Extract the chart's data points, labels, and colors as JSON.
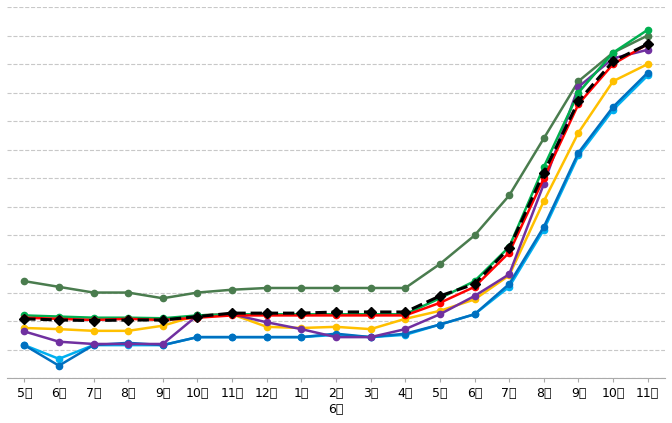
{
  "x_labels": [
    "5月",
    "6月",
    "7月",
    "8月",
    "9月",
    "10月",
    "11月",
    "12月",
    "1月",
    "2月",
    "3月",
    "4月",
    "5月",
    "6月",
    "7月",
    "8月",
    "9月",
    "10月",
    "11月"
  ],
  "xlabel": "6年",
  "series": [
    {
      "name": "dark_green",
      "color": "#4a7c4e",
      "linestyle": "-",
      "marker": "o",
      "linewidth": 1.8,
      "markersize": 4.5,
      "zorder": 3,
      "values": [
        3200,
        3100,
        3000,
        3000,
        2900,
        3000,
        3050,
        3080,
        3080,
        3080,
        3080,
        3080,
        3500,
        4000,
        4700,
        5700,
        6700,
        7200,
        7500
      ]
    },
    {
      "name": "bright_green",
      "color": "#00b050",
      "linestyle": "-",
      "marker": "o",
      "linewidth": 1.8,
      "markersize": 4.5,
      "zorder": 4,
      "values": [
        2600,
        2580,
        2560,
        2560,
        2550,
        2600,
        2620,
        2620,
        2620,
        2620,
        2620,
        2620,
        2900,
        3200,
        3800,
        5200,
        6500,
        7200,
        7600
      ]
    },
    {
      "name": "red",
      "color": "#ff0000",
      "linestyle": "-",
      "marker": "o",
      "linewidth": 1.8,
      "markersize": 4.5,
      "zorder": 5,
      "values": [
        2560,
        2540,
        2520,
        2540,
        2520,
        2560,
        2600,
        2600,
        2600,
        2600,
        2600,
        2600,
        2820,
        3100,
        3700,
        5000,
        6300,
        7000,
        7350
      ]
    },
    {
      "name": "black_dashed",
      "color": "#000000",
      "linestyle": "--",
      "marker": "D",
      "linewidth": 2.2,
      "markersize": 5.5,
      "zorder": 6,
      "values": [
        2540,
        2520,
        2510,
        2520,
        2520,
        2580,
        2640,
        2640,
        2640,
        2660,
        2660,
        2660,
        2940,
        3150,
        3780,
        5100,
        6350,
        7050,
        7350
      ]
    },
    {
      "name": "yellow",
      "color": "#ffc000",
      "linestyle": "-",
      "marker": "o",
      "linewidth": 1.8,
      "markersize": 4.5,
      "zorder": 2,
      "values": [
        2380,
        2360,
        2330,
        2330,
        2420,
        2600,
        2620,
        2400,
        2380,
        2400,
        2360,
        2540,
        2680,
        2880,
        3300,
        4600,
        5800,
        6700,
        7000
      ]
    },
    {
      "name": "purple",
      "color": "#7030a0",
      "linestyle": "-",
      "marker": "o",
      "linewidth": 1.8,
      "markersize": 4.5,
      "zorder": 3,
      "values": [
        2320,
        2140,
        2100,
        2100,
        2100,
        2600,
        2620,
        2480,
        2360,
        2220,
        2220,
        2360,
        2620,
        2940,
        3320,
        4900,
        6600,
        7100,
        7250
      ]
    },
    {
      "name": "light_blue",
      "color": "#00b0f0",
      "linestyle": "-",
      "marker": "o",
      "linewidth": 1.8,
      "markersize": 4.5,
      "zorder": 2,
      "values": [
        2080,
        1840,
        2080,
        2080,
        2080,
        2220,
        2220,
        2220,
        2220,
        2260,
        2220,
        2260,
        2440,
        2620,
        3100,
        4100,
        5400,
        6200,
        6800
      ]
    },
    {
      "name": "dark_blue",
      "color": "#0070c0",
      "linestyle": "-",
      "marker": "o",
      "linewidth": 1.8,
      "markersize": 4.5,
      "zorder": 2,
      "values": [
        2080,
        1720,
        2080,
        2120,
        2080,
        2220,
        2220,
        2220,
        2220,
        2280,
        2220,
        2280,
        2440,
        2620,
        3150,
        4150,
        5450,
        6250,
        6850
      ]
    }
  ],
  "ylim_min": 1500,
  "ylim_max": 8000,
  "n_gridlines": 14,
  "background_color": "#ffffff",
  "grid_color": "#c8c8c8",
  "grid_linestyle": "--",
  "grid_linewidth": 0.8,
  "tick_fontsize": 9,
  "xlabel_fontsize": 9
}
